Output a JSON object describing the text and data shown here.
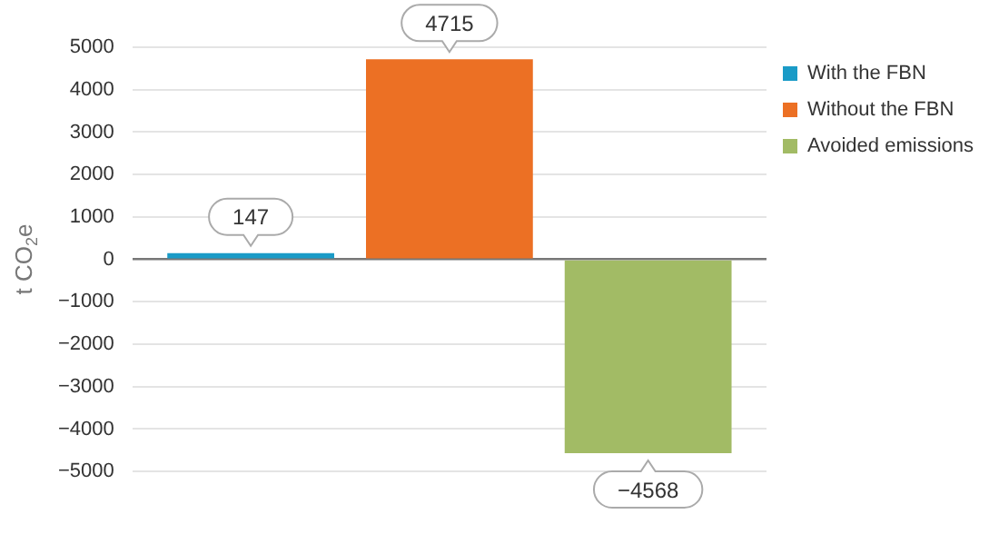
{
  "chart_data": {
    "type": "bar",
    "ylabel": "t CO$_{2}$e",
    "categories": [
      null
    ],
    "series": [
      {
        "name": "With the FBN",
        "color": "#1a9bc7",
        "values": [
          147
        ]
      },
      {
        "name": "Without the FBN",
        "color": "#ec7024",
        "values": [
          4715
        ]
      },
      {
        "name": "Avoided emissions",
        "color": "#a2bb65",
        "values": [
          -4568
        ]
      }
    ],
    "ylim": [
      -5000,
      5000
    ],
    "yticks": [
      -5000,
      -4000,
      -3000,
      -2000,
      -1000,
      0,
      1000,
      2000,
      3000,
      4000,
      5000
    ],
    "grid": "y",
    "legend": "top right",
    "data_labels": true
  }
}
